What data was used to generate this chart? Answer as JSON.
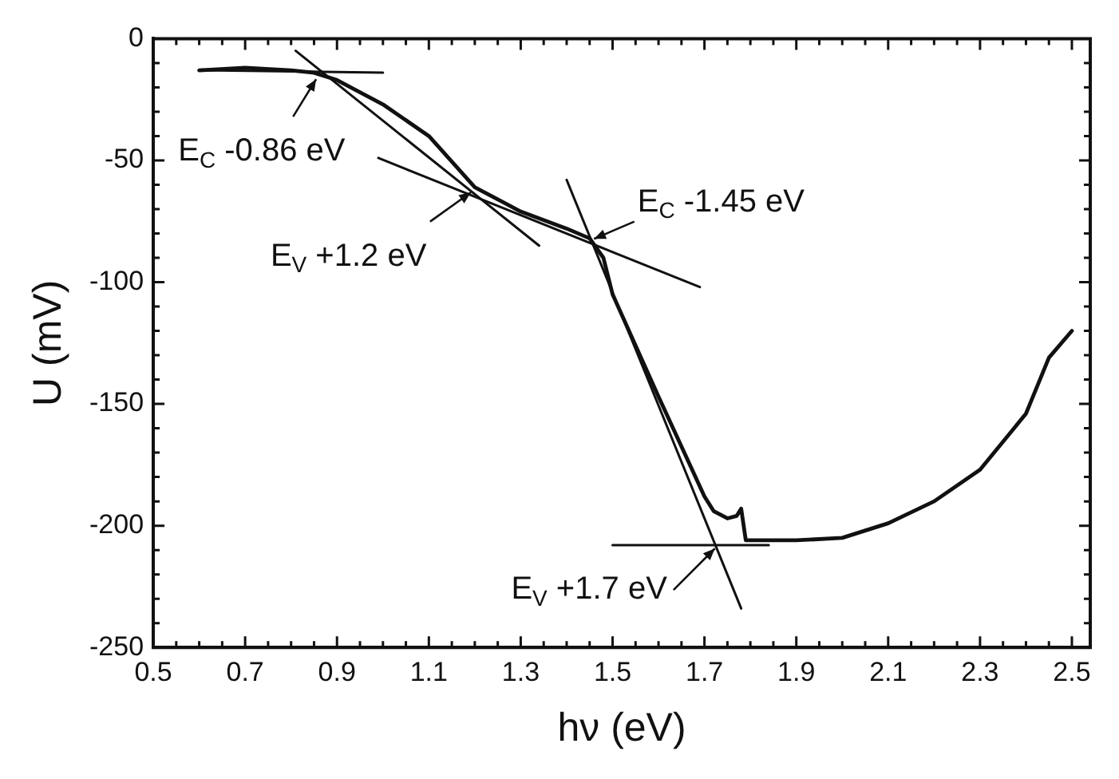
{
  "chart_data": {
    "type": "line",
    "xlabel": "hν (eV)",
    "ylabel": "U (mV)",
    "xlim": [
      0.5,
      2.54
    ],
    "ylim": [
      -250,
      0
    ],
    "xticks": [
      0.5,
      {
        "value": 0.55,
        "label": null
      },
      {
        "value": 0.6,
        "label": null
      },
      {
        "value": 0.65,
        "label": null
      },
      0.7,
      {
        "value": 0.75,
        "label": null
      },
      {
        "value": 0.8,
        "label": null
      },
      {
        "value": 0.85,
        "label": null
      },
      0.9,
      {
        "value": 0.95,
        "label": null
      },
      {
        "value": 1.0,
        "label": null
      },
      {
        "value": 1.05,
        "label": null
      },
      1.1,
      {
        "value": 1.15,
        "label": null
      },
      {
        "value": 1.2,
        "label": null
      },
      {
        "value": 1.25,
        "label": null
      },
      1.3,
      {
        "value": 1.35,
        "label": null
      },
      {
        "value": 1.4,
        "label": null
      },
      {
        "value": 1.45,
        "label": null
      },
      1.5,
      {
        "value": 1.55,
        "label": null
      },
      {
        "value": 1.6,
        "label": null
      },
      {
        "value": 1.65,
        "label": null
      },
      1.7,
      {
        "value": 1.75,
        "label": null
      },
      {
        "value": 1.8,
        "label": null
      },
      {
        "value": 1.85,
        "label": null
      },
      1.9,
      {
        "value": 1.95,
        "label": null
      },
      {
        "value": 2.0,
        "label": null
      },
      {
        "value": 2.05,
        "label": null
      },
      2.1,
      {
        "value": 2.15,
        "label": null
      },
      {
        "value": 2.2,
        "label": null
      },
      {
        "value": 2.25,
        "label": null
      },
      2.3,
      {
        "value": 2.35,
        "label": null
      },
      {
        "value": 2.4,
        "label": null
      },
      {
        "value": 2.45,
        "label": null
      },
      2.5
    ],
    "yticks": [
      -250,
      {
        "value": -240,
        "label": null
      },
      {
        "value": -230,
        "label": null
      },
      {
        "value": -220,
        "label": null
      },
      {
        "value": -210,
        "label": null
      },
      -200,
      {
        "value": -190,
        "label": null
      },
      {
        "value": -180,
        "label": null
      },
      {
        "value": -170,
        "label": null
      },
      {
        "value": -160,
        "label": null
      },
      -150,
      {
        "value": -140,
        "label": null
      },
      {
        "value": -130,
        "label": null
      },
      {
        "value": -120,
        "label": null
      },
      {
        "value": -110,
        "label": null
      },
      -100,
      {
        "value": -90,
        "label": null
      },
      {
        "value": -80,
        "label": null
      },
      {
        "value": -70,
        "label": null
      },
      {
        "value": -60,
        "label": null
      },
      -50,
      {
        "value": -40,
        "label": null
      },
      {
        "value": -30,
        "label": null
      },
      {
        "value": -20,
        "label": null
      },
      {
        "value": -10,
        "label": null
      },
      0
    ],
    "marker": "none",
    "line_style": "solid",
    "series": [
      {
        "color": "#111111",
        "x": [
          0.6,
          0.7,
          0.8,
          0.85,
          0.9,
          1.0,
          1.1,
          1.2,
          1.3,
          1.4,
          1.45,
          1.48,
          1.5,
          1.6,
          1.7,
          1.72,
          1.75,
          1.77,
          1.78,
          1.79,
          1.8,
          1.9,
          2.0,
          2.1,
          2.2,
          2.3,
          2.4,
          2.45,
          2.5
        ],
        "values": [
          -13,
          -12,
          -13,
          -14,
          -17,
          -27,
          -40,
          -61,
          -71,
          -78,
          -82,
          -90,
          -105,
          -147,
          -188,
          -194,
          -197,
          -196,
          -193,
          -206,
          -206,
          -206,
          -205,
          -199,
          -190,
          -177,
          -154,
          -131,
          -120
        ]
      },
      {
        "color": "#111111",
        "x": [
          0.6,
          1.0
        ],
        "values": [
          -13,
          -14
        ]
      },
      {
        "color": "#111111",
        "x": [
          0.81,
          1.34
        ],
        "values": [
          -5,
          -85
        ]
      },
      {
        "color": "#111111",
        "x": [
          0.99,
          1.69
        ],
        "values": [
          -49,
          -102
        ]
      },
      {
        "color": "#111111",
        "x": [
          1.4,
          1.78
        ],
        "values": [
          -58,
          -234
        ]
      },
      {
        "color": "#111111",
        "x": [
          1.5,
          1.84
        ],
        "values": [
          -208,
          -208
        ]
      }
    ],
    "annotations": [
      {
        "text": "E$_{C}$ -0.86 eV",
        "x": 0.86,
        "y": -15
      },
      {
        "text": "E$_{V}$ +1.2 eV",
        "x": 1.2,
        "y": -62
      },
      {
        "text": "E$_{C}$ -1.45 eV",
        "x": 1.45,
        "y": -83
      },
      {
        "text": "E$_{V}$ +1.7 eV",
        "x": 1.73,
        "y": -208
      }
    ]
  }
}
